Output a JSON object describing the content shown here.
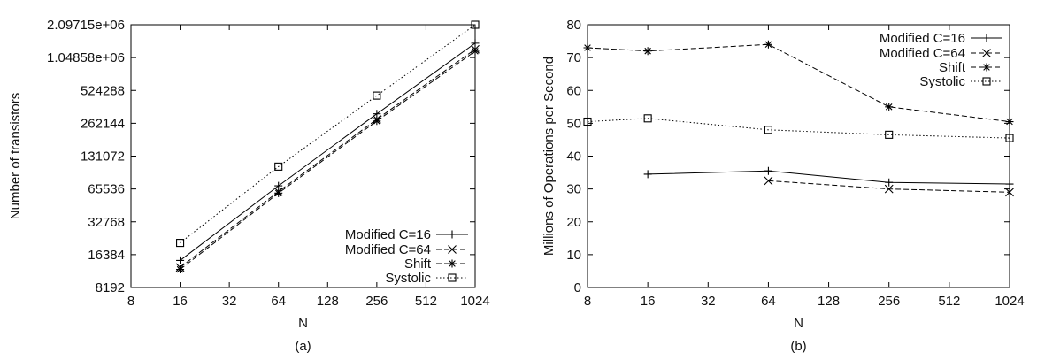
{
  "chart_data": [
    {
      "type": "line",
      "caption": "(a)",
      "xlabel": "N",
      "ylabel": "Number of transistors",
      "x_scale": "log2",
      "y_scale": "log2",
      "xlim": [
        8,
        1024
      ],
      "ylim": [
        8192,
        2097150
      ],
      "x_ticks": [
        "8",
        "16",
        "32",
        "64",
        "128",
        "256",
        "512",
        "1024"
      ],
      "y_ticks": [
        "8192",
        "16384",
        "32768",
        "65536",
        "131072",
        "262144",
        "524288",
        "1.04858e+06",
        "2.09715e+06"
      ],
      "legend_position": "bottom-right",
      "series": [
        {
          "name": "Modified C=16",
          "marker": "plus",
          "dash": "solid",
          "x": [
            16,
            64,
            256,
            1024
          ],
          "y": [
            14500,
            70000,
            320000,
            1420000
          ]
        },
        {
          "name": "Modified C=64",
          "marker": "cross",
          "dash": "dashed",
          "x": [
            16,
            64,
            256,
            1024
          ],
          "y": [
            12500,
            62000,
            285000,
            1250000
          ]
        },
        {
          "name": "Shift",
          "marker": "star",
          "dash": "dashed",
          "x": [
            16,
            64,
            256,
            1024
          ],
          "y": [
            12000,
            60000,
            275000,
            1200000
          ]
        },
        {
          "name": "Systolic",
          "marker": "square",
          "dash": "dotted",
          "x": [
            16,
            64,
            256,
            1024
          ],
          "y": [
            21000,
            105000,
            470000,
            2097150
          ]
        }
      ]
    },
    {
      "type": "line",
      "caption": "(b)",
      "xlabel": "N",
      "ylabel": "Millions of Operations per Second",
      "x_scale": "log2",
      "y_scale": "linear",
      "xlim": [
        8,
        1024
      ],
      "ylim": [
        0,
        80
      ],
      "x_ticks": [
        "8",
        "16",
        "32",
        "64",
        "128",
        "256",
        "512",
        "1024"
      ],
      "y_ticks": [
        "0",
        "10",
        "20",
        "30",
        "40",
        "50",
        "60",
        "70",
        "80"
      ],
      "legend_position": "top-right",
      "series": [
        {
          "name": "Modified C=16",
          "marker": "plus",
          "dash": "solid",
          "x": [
            16,
            64,
            256,
            1024
          ],
          "y": [
            34.5,
            35.5,
            32,
            31.5
          ]
        },
        {
          "name": "Modified C=64",
          "marker": "cross",
          "dash": "dashed",
          "x": [
            64,
            256,
            1024
          ],
          "y": [
            32.5,
            30,
            29
          ]
        },
        {
          "name": "Shift",
          "marker": "star",
          "dash": "dashed",
          "x": [
            8,
            16,
            64,
            256,
            1024
          ],
          "y": [
            73,
            72,
            74,
            55,
            50.5
          ]
        },
        {
          "name": "Systolic",
          "marker": "square",
          "dash": "dotted",
          "x": [
            8,
            16,
            64,
            256,
            1024
          ],
          "y": [
            50.5,
            51.5,
            48,
            46.5,
            45.5
          ]
        }
      ]
    }
  ]
}
